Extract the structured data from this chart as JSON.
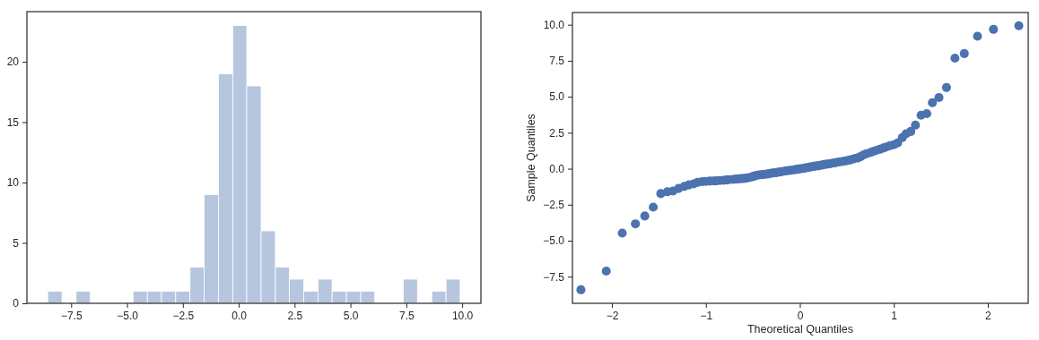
{
  "chart_data": [
    {
      "type": "histogram",
      "color": "#b7c6df",
      "bins": [
        -8.55,
        -7.91,
        -7.28,
        -6.64,
        -6.0,
        -5.37,
        -4.73,
        -4.09,
        -3.46,
        -2.82,
        -2.18,
        -1.55,
        -0.91,
        -0.27,
        0.36,
        1.0,
        1.64,
        2.27,
        2.91,
        3.55,
        4.18,
        4.82,
        5.46,
        6.09,
        6.73,
        7.37,
        8.0,
        8.64,
        9.28,
        9.91
      ],
      "values": [
        1,
        0,
        1,
        0,
        0,
        0,
        1,
        1,
        1,
        1,
        3,
        9,
        19,
        23,
        18,
        6,
        3,
        2,
        1,
        2,
        1,
        1,
        1,
        0,
        0,
        2,
        0,
        1,
        2
      ],
      "xlim": [
        -9.48,
        10.84
      ],
      "xticks": [
        {
          "value": -7.5,
          "label": "−7.5"
        },
        {
          "value": -5,
          "label": "−5.0"
        },
        {
          "value": -2.5,
          "label": "−2.5"
        },
        {
          "value": 0,
          "label": "0.0"
        },
        {
          "value": 2.5,
          "label": "2.5"
        },
        {
          "value": 5,
          "label": "5.0"
        },
        {
          "value": 7.5,
          "label": "7.5"
        },
        {
          "value": 10,
          "label": "10.0"
        }
      ],
      "ylim": [
        0,
        24.15
      ],
      "yticks": [
        0,
        5,
        10,
        15,
        20
      ]
    },
    {
      "type": "scatter",
      "marker": "circle",
      "xlabel": "Theoretical Quantiles",
      "ylabel": "Sample Quantiles",
      "xlim": [
        -2.42,
        2.43
      ],
      "xticks": [
        {
          "value": -2,
          "label": "−2"
        },
        {
          "value": -1,
          "label": "−1"
        },
        0,
        1,
        2
      ],
      "ylim": [
        -9.35,
        10.85
      ],
      "yticks": [
        {
          "value": -7.5,
          "label": "−7.5"
        },
        {
          "value": -5,
          "label": "−5.0"
        },
        {
          "value": -2.5,
          "label": "−2.5"
        },
        {
          "value": 0,
          "label": "0.0"
        },
        {
          "value": 2.5,
          "label": "2.5"
        },
        {
          "value": 5,
          "label": "5.0"
        },
        {
          "value": 7.5,
          "label": "7.5"
        },
        {
          "value": 10,
          "label": "10.0"
        }
      ],
      "series": [
        {
          "color": "#4c72b0",
          "x": [
            -2.33,
            -2.06,
            -1.89,
            -1.75,
            -1.65,
            -1.56,
            -1.48,
            -1.41,
            -1.35,
            -1.29,
            -1.23,
            -1.18,
            -1.13,
            -1.09,
            -1.04,
            -1.0,
            -0.96,
            -0.92,
            -0.89,
            -0.85,
            -0.81,
            -0.78,
            -0.75,
            -0.71,
            -0.68,
            -0.65,
            -0.62,
            -0.59,
            -0.56,
            -0.53,
            -0.5,
            -0.48,
            -0.45,
            -0.42,
            -0.39,
            -0.37,
            -0.34,
            -0.32,
            -0.29,
            -0.26,
            -0.24,
            -0.21,
            -0.19,
            -0.16,
            -0.14,
            -0.11,
            -0.09,
            -0.06,
            -0.04,
            -0.01,
            0.01,
            0.04,
            0.06,
            0.09,
            0.11,
            0.14,
            0.16,
            0.19,
            0.21,
            0.24,
            0.26,
            0.29,
            0.32,
            0.34,
            0.37,
            0.39,
            0.42,
            0.45,
            0.48,
            0.5,
            0.53,
            0.56,
            0.59,
            0.62,
            0.65,
            0.68,
            0.71,
            0.75,
            0.78,
            0.81,
            0.85,
            0.89,
            0.92,
            0.96,
            1.0,
            1.04,
            1.09,
            1.13,
            1.18,
            1.23,
            1.29,
            1.35,
            1.41,
            1.48,
            1.56,
            1.65,
            1.75,
            1.89,
            2.06,
            2.33
          ],
          "values": [
            -8.41,
            -7.11,
            -4.47,
            -3.83,
            -3.28,
            -2.67,
            -1.73,
            -1.6,
            -1.55,
            -1.37,
            -1.23,
            -1.12,
            -1.05,
            -0.95,
            -0.9,
            -0.88,
            -0.86,
            -0.85,
            -0.84,
            -0.82,
            -0.8,
            -0.78,
            -0.76,
            -0.74,
            -0.72,
            -0.7,
            -0.69,
            -0.67,
            -0.64,
            -0.6,
            -0.55,
            -0.5,
            -0.45,
            -0.42,
            -0.4,
            -0.38,
            -0.36,
            -0.33,
            -0.3,
            -0.28,
            -0.25,
            -0.22,
            -0.2,
            -0.17,
            -0.14,
            -0.12,
            -0.1,
            -0.07,
            -0.05,
            -0.02,
            0.0,
            0.03,
            0.06,
            0.09,
            0.12,
            0.15,
            0.18,
            0.2,
            0.23,
            0.26,
            0.29,
            0.32,
            0.35,
            0.38,
            0.41,
            0.44,
            0.47,
            0.5,
            0.53,
            0.56,
            0.6,
            0.66,
            0.72,
            0.76,
            0.85,
            0.97,
            1.05,
            1.12,
            1.2,
            1.26,
            1.35,
            1.44,
            1.51,
            1.6,
            1.67,
            1.79,
            2.16,
            2.43,
            2.59,
            3.03,
            3.72,
            3.83,
            4.59,
            4.95,
            5.64,
            7.68,
            8.0,
            9.2,
            9.68,
            9.93
          ]
        }
      ]
    }
  ]
}
